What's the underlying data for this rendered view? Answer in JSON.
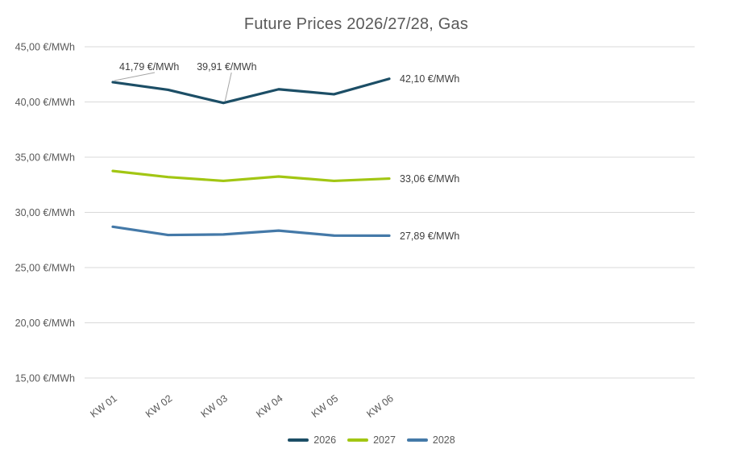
{
  "chart_data": {
    "type": "line",
    "title": "Future Prices 2026/27/28, Gas",
    "xlabel": "",
    "ylabel": "",
    "categories": [
      "KW 01",
      "KW 02",
      "KW 03",
      "KW 04",
      "KW 05",
      "KW 06"
    ],
    "series": [
      {
        "name": "2026",
        "color": "#1C4E66",
        "values": [
          41.79,
          41.1,
          39.91,
          41.15,
          40.7,
          42.1
        ]
      },
      {
        "name": "2027",
        "color": "#A2C613",
        "values": [
          33.75,
          33.2,
          32.85,
          33.25,
          32.85,
          33.06
        ]
      },
      {
        "name": "2028",
        "color": "#4479A8",
        "values": [
          28.7,
          27.95,
          28.0,
          28.35,
          27.9,
          27.89
        ]
      }
    ],
    "ylim": [
      15,
      45
    ],
    "y_ticks": [
      45,
      40,
      35,
      30,
      25,
      20,
      15
    ],
    "y_tick_labels": [
      "45,00 €/MWh",
      "40,00 €/MWh",
      "35,00 €/MWh",
      "30,00 €/MWh",
      "25,00 €/MWh",
      "20,00 €/MWh",
      "15,00 €/MWh"
    ],
    "grid": "horizontal",
    "legend_position": "bottom-center",
    "annotations": [
      {
        "series": "2026",
        "index": 0,
        "label": "41,79 €/MWh"
      },
      {
        "series": "2026",
        "index": 2,
        "label": "39,91 €/MWh"
      },
      {
        "series": "2026",
        "index": 5,
        "label": "42,10 €/MWh"
      },
      {
        "series": "2027",
        "index": 5,
        "label": "33,06 €/MWh"
      },
      {
        "series": "2028",
        "index": 5,
        "label": "27,89 €/MWh"
      }
    ],
    "colors": {
      "gridline": "#d9d9d9",
      "axis_text": "#595959",
      "title_text": "#595959",
      "data_label_text": "#3f3f3f",
      "leader_line": "#a6a6a6"
    }
  }
}
